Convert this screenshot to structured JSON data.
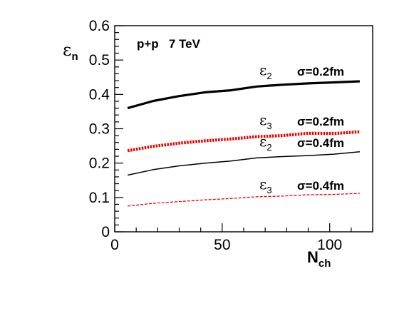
{
  "chart_data": {
    "type": "line",
    "title": "",
    "annotation": "p+p   7 TeV",
    "ylabel": "ε",
    "ylabel_sub": "n",
    "xlabel": "N",
    "xlabel_sub": "ch",
    "xlim": [
      0,
      120
    ],
    "ylim": [
      0,
      0.6
    ],
    "xticks": [
      0,
      50,
      100
    ],
    "xtick_labels": [
      "0",
      "50",
      "100"
    ],
    "yticks": [
      0,
      0.1,
      0.2,
      0.3,
      0.4,
      0.5,
      0.6
    ],
    "ytick_labels": [
      "0",
      "0.1",
      "0.2",
      "0.3",
      "0.4",
      "0.5",
      "0.6"
    ],
    "grid": false,
    "series": [
      {
        "name": "ε2 σ=0.2fm",
        "sym": "ε",
        "sub": "2",
        "param": "σ=0.2fm",
        "color": "#000000",
        "style": "solid",
        "width": 3.2,
        "x": [
          6,
          18,
          30,
          42,
          54,
          66,
          78,
          90,
          102,
          114
        ],
        "y": [
          0.36,
          0.381,
          0.395,
          0.406,
          0.412,
          0.423,
          0.428,
          0.432,
          0.435,
          0.438
        ]
      },
      {
        "name": "ε3 σ=0.2fm",
        "sym": "ε",
        "sub": "3",
        "param": "σ=0.2fm",
        "color": "#ee0000",
        "style": "dotted",
        "width": 4.2,
        "x": [
          6,
          18,
          30,
          42,
          54,
          66,
          78,
          90,
          102,
          114
        ],
        "y": [
          0.236,
          0.249,
          0.258,
          0.265,
          0.27,
          0.277,
          0.28,
          0.287,
          0.286,
          0.291
        ]
      },
      {
        "name": "ε2 σ=0.4fm",
        "sym": "ε",
        "sub": "2",
        "param": "σ=0.4fm",
        "color": "#000000",
        "style": "solid",
        "width": 1.5,
        "x": [
          6,
          18,
          30,
          42,
          54,
          66,
          78,
          90,
          102,
          114
        ],
        "y": [
          0.165,
          0.181,
          0.192,
          0.2,
          0.206,
          0.215,
          0.219,
          0.222,
          0.226,
          0.233
        ]
      },
      {
        "name": "ε3 σ=0.4fm",
        "sym": "ε",
        "sub": "3",
        "param": "σ=0.4fm",
        "color": "#ee0000",
        "style": "dashed",
        "width": 1.3,
        "x": [
          6,
          18,
          30,
          42,
          54,
          66,
          78,
          90,
          102,
          114
        ],
        "y": [
          0.075,
          0.083,
          0.088,
          0.093,
          0.097,
          0.102,
          0.104,
          0.108,
          0.109,
          0.112
        ]
      }
    ]
  }
}
